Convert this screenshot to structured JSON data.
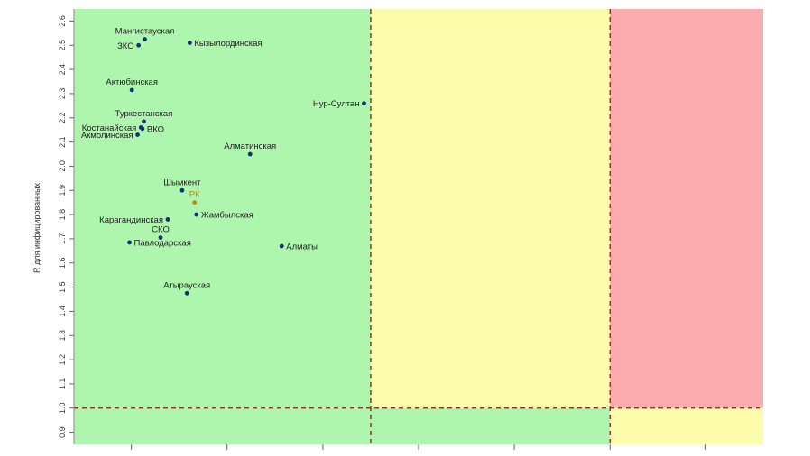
{
  "chart_data": {
    "type": "scatter",
    "title": "",
    "xlabel": "",
    "ylabel": "R для инфицированных",
    "xlim": [
      0,
      7.2
    ],
    "ylim": [
      0.85,
      2.65
    ],
    "y_ticks": [
      0.9,
      1.0,
      1.1,
      1.2,
      1.3,
      1.4,
      1.5,
      1.6,
      1.7,
      1.8,
      1.9,
      2.0,
      2.1,
      2.2,
      2.3,
      2.4,
      2.5,
      2.6
    ],
    "y_tick_labels": [
      "0.9",
      "1.0",
      "1.1",
      "1.2",
      "1.3",
      "1.4",
      "1.5",
      "1.6",
      "1.7",
      "1.8",
      "1.9",
      "2.0",
      "2.1",
      "2.2",
      "2.3",
      "2.4",
      "2.5",
      "2.6"
    ],
    "x_ticks": [
      0.6,
      1.6,
      2.6,
      3.6,
      4.6,
      5.6,
      6.6
    ],
    "grid": false,
    "legend": "none",
    "thresholds": {
      "x": [
        3.1,
        5.6
      ],
      "y": [
        1.0
      ]
    },
    "zones": [
      {
        "x0": 0,
        "x1": 3.1,
        "y0": 1.0,
        "y1": 2.65,
        "color": "#aef5ae"
      },
      {
        "x0": 3.1,
        "x1": 5.6,
        "y0": 1.0,
        "y1": 2.65,
        "color": "#fcfcab"
      },
      {
        "x0": 5.6,
        "x1": 7.2,
        "y0": 1.0,
        "y1": 2.65,
        "color": "#fcacac"
      },
      {
        "x0": 0,
        "x1": 5.6,
        "y0": 0.85,
        "y1": 1.0,
        "color": "#aef5ae"
      },
      {
        "x0": 5.6,
        "x1": 7.2,
        "y0": 0.85,
        "y1": 1.0,
        "color": "#fcfcab"
      }
    ],
    "colors": {
      "point": "#14307a",
      "highlight_point": "#c8860a",
      "threshold_line": "#8b1a1a"
    },
    "points": [
      {
        "label": "Мангистауская",
        "x": 0.74,
        "y": 2.525,
        "anchor": "middle",
        "side": "above"
      },
      {
        "label": "ЗКО",
        "x": 0.675,
        "y": 2.5,
        "anchor": "end",
        "side": "right"
      },
      {
        "label": "Кызылординская",
        "x": 1.21,
        "y": 2.51,
        "anchor": "start",
        "side": "right"
      },
      {
        "label": "Актюбинская",
        "x": 0.605,
        "y": 2.315,
        "anchor": "middle",
        "side": "above"
      },
      {
        "label": "Нур-Султан",
        "x": 3.03,
        "y": 2.26,
        "anchor": "end",
        "side": "right"
      },
      {
        "label": "Туркестанская",
        "x": 0.73,
        "y": 2.185,
        "anchor": "middle",
        "side": "above"
      },
      {
        "label": "Костанайская",
        "x": 0.7,
        "y": 2.16,
        "anchor": "end",
        "side": "right"
      },
      {
        "label": "ВКО",
        "x": 0.715,
        "y": 2.155,
        "anchor": "start",
        "side": "right"
      },
      {
        "label": "Акмолинская",
        "x": 0.665,
        "y": 2.13,
        "anchor": "end",
        "side": "right"
      },
      {
        "label": "Алматинская",
        "x": 1.84,
        "y": 2.05,
        "anchor": "middle",
        "side": "above"
      },
      {
        "label": "Шымкент",
        "x": 1.13,
        "y": 1.9,
        "anchor": "middle",
        "side": "above"
      },
      {
        "label": "РК",
        "x": 1.26,
        "y": 1.85,
        "anchor": "middle",
        "side": "above",
        "highlight": true
      },
      {
        "label": "Жамбылская",
        "x": 1.28,
        "y": 1.8,
        "anchor": "start",
        "side": "right"
      },
      {
        "label": "Карагандинская",
        "x": 0.98,
        "y": 1.78,
        "anchor": "end",
        "side": "right"
      },
      {
        "label": "СКО",
        "x": 0.905,
        "y": 1.705,
        "anchor": "middle",
        "side": "above"
      },
      {
        "label": "Павлодарская",
        "x": 0.58,
        "y": 1.685,
        "anchor": "start",
        "side": "right"
      },
      {
        "label": "Алматы",
        "x": 2.17,
        "y": 1.67,
        "anchor": "start",
        "side": "right"
      },
      {
        "label": "Атырауская",
        "x": 1.18,
        "y": 1.475,
        "anchor": "middle",
        "side": "above"
      }
    ]
  }
}
